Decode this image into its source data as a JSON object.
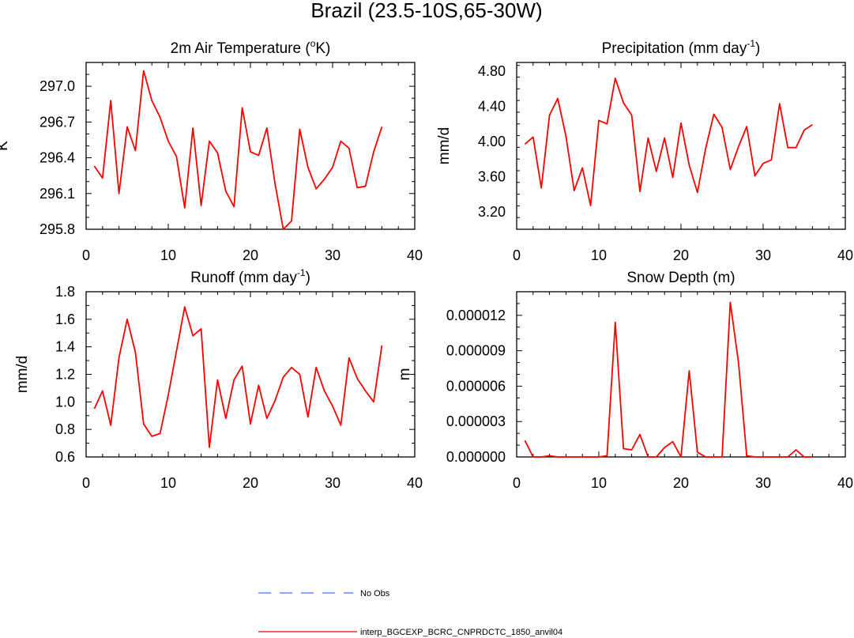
{
  "figure_title": "Brazil (23.5-10S,65-30W)",
  "colors": {
    "model_line": "#ff0000",
    "obs_line": "#4d6bff",
    "axis": "#000000"
  },
  "legend": [
    {
      "label": "No Obs",
      "style": "dashed",
      "color": "#4d6bff"
    },
    {
      "label": "interp_BGCEXP_BCRC_CNPRDCTC_1850_anvil04",
      "style": "solid",
      "color": "#ff0000"
    }
  ],
  "chart_data": [
    {
      "type": "line",
      "title": "2m Air Temperature (",
      "title_sup": "o",
      "title_after": "K)",
      "ylabel": "K",
      "xlim": [
        0,
        40
      ],
      "ylim": [
        295.8,
        297.2
      ],
      "xticks": [
        0,
        10,
        20,
        30,
        40
      ],
      "xtick_labels": [
        "0",
        "10",
        "20",
        "30",
        "40"
      ],
      "yticks": [
        295.8,
        296.1,
        296.4,
        296.7,
        297.0
      ],
      "ytick_labels": [
        "295.8",
        "296.1",
        "296.4",
        "296.7",
        "297.0"
      ],
      "x": [
        1,
        2,
        3,
        4,
        5,
        6,
        7,
        8,
        9,
        10,
        11,
        12,
        13,
        14,
        15,
        16,
        17,
        18,
        19,
        20,
        21,
        22,
        23,
        24,
        25,
        26,
        27,
        28,
        29,
        30,
        31,
        32,
        33,
        34,
        35,
        36
      ],
      "series": [
        {
          "name": "interp_BGCEXP_BCRC_CNPRDCTC_1850_anvil04",
          "values": [
            296.33,
            296.23,
            296.88,
            296.1,
            296.66,
            296.46,
            297.13,
            296.88,
            296.74,
            296.54,
            296.41,
            295.98,
            296.65,
            296.0,
            296.54,
            296.44,
            296.12,
            295.99,
            296.82,
            296.45,
            296.42,
            296.65,
            296.18,
            295.8,
            295.87,
            296.64,
            296.32,
            296.14,
            296.22,
            296.32,
            296.54,
            296.48,
            296.15,
            296.16,
            296.45,
            296.66
          ]
        }
      ]
    },
    {
      "type": "line",
      "title": "Precipitation (mm day",
      "title_sup": "-1",
      "title_after": ")",
      "ylabel": "mm/d",
      "xlim": [
        0,
        40
      ],
      "ylim": [
        3.0,
        4.9
      ],
      "xticks": [
        0,
        10,
        20,
        30,
        40
      ],
      "xtick_labels": [
        "0",
        "10",
        "20",
        "30",
        "40"
      ],
      "yticks": [
        3.2,
        3.6,
        4.0,
        4.4,
        4.8
      ],
      "ytick_labels": [
        "3.20",
        "3.60",
        "4.00",
        "4.40",
        "4.80"
      ],
      "x": [
        1,
        2,
        3,
        4,
        5,
        6,
        7,
        8,
        9,
        10,
        11,
        12,
        13,
        14,
        15,
        16,
        17,
        18,
        19,
        20,
        21,
        22,
        23,
        24,
        25,
        26,
        27,
        28,
        29,
        30,
        31,
        32,
        33,
        34,
        35,
        36
      ],
      "series": [
        {
          "name": "interp_BGCEXP_BCRC_CNPRDCTC_1850_anvil04",
          "values": [
            3.97,
            4.05,
            3.47,
            4.3,
            4.49,
            4.06,
            3.44,
            3.7,
            3.27,
            4.24,
            4.2,
            4.72,
            4.44,
            4.3,
            3.43,
            4.04,
            3.66,
            4.04,
            3.59,
            4.21,
            3.73,
            3.42,
            3.92,
            4.31,
            4.16,
            3.68,
            3.94,
            4.17,
            3.61,
            3.75,
            3.79,
            4.43,
            3.93,
            3.93,
            4.13,
            4.19
          ]
        }
      ]
    },
    {
      "type": "line",
      "title": "Runoff (mm day",
      "title_sup": "-1",
      "title_after": ")",
      "ylabel": "mm/d",
      "xlim": [
        0,
        40
      ],
      "ylim": [
        0.6,
        1.8
      ],
      "xticks": [
        0,
        10,
        20,
        30,
        40
      ],
      "xtick_labels": [
        "0",
        "10",
        "20",
        "30",
        "40"
      ],
      "yticks": [
        0.6,
        0.8,
        1.0,
        1.2,
        1.4,
        1.6,
        1.8
      ],
      "ytick_labels": [
        "0.6",
        "0.8",
        "1.0",
        "1.2",
        "1.4",
        "1.6",
        "1.8"
      ],
      "x": [
        1,
        2,
        3,
        4,
        5,
        6,
        7,
        8,
        9,
        10,
        11,
        12,
        13,
        14,
        15,
        16,
        17,
        18,
        19,
        20,
        21,
        22,
        23,
        24,
        25,
        26,
        27,
        28,
        29,
        30,
        31,
        32,
        33,
        34,
        35,
        36
      ],
      "series": [
        {
          "name": "interp_BGCEXP_BCRC_CNPRDCTC_1850_anvil04",
          "values": [
            0.95,
            1.08,
            0.83,
            1.32,
            1.6,
            1.36,
            0.84,
            0.75,
            0.77,
            1.05,
            1.37,
            1.69,
            1.48,
            1.53,
            0.67,
            1.16,
            0.88,
            1.16,
            1.26,
            0.84,
            1.12,
            0.88,
            1.01,
            1.18,
            1.25,
            1.2,
            0.89,
            1.25,
            1.08,
            0.97,
            0.83,
            1.32,
            1.17,
            1.08,
            1.0,
            1.41
          ]
        }
      ]
    },
    {
      "type": "line",
      "title": "Snow Depth (m)",
      "title_sup": "",
      "title_after": "",
      "ylabel": "m",
      "xlim": [
        0,
        40
      ],
      "ylim": [
        0,
        1.4e-05
      ],
      "xticks": [
        0,
        10,
        20,
        30,
        40
      ],
      "xtick_labels": [
        "0",
        "10",
        "20",
        "30",
        "40"
      ],
      "yticks": [
        0,
        3e-06,
        6e-06,
        9e-06,
        1.2e-05
      ],
      "ytick_labels": [
        "0.000000",
        "0.000003",
        "0.000006",
        "0.000009",
        "0.000012"
      ],
      "x": [
        1,
        2,
        3,
        4,
        5,
        6,
        7,
        8,
        9,
        10,
        11,
        12,
        13,
        14,
        15,
        16,
        17,
        18,
        19,
        20,
        21,
        22,
        23,
        24,
        25,
        26,
        27,
        28,
        29,
        30,
        31,
        32,
        33,
        34,
        35,
        36
      ],
      "series": [
        {
          "name": "interp_BGCEXP_BCRC_CNPRDCTC_1850_anvil04",
          "values": [
            1.4e-06,
            0,
            0,
            1e-07,
            0,
            0,
            0,
            0,
            0,
            0,
            1e-07,
            1.14e-05,
            7e-07,
            6e-07,
            1.9e-06,
            0,
            0,
            8e-07,
            1.3e-06,
            0,
            7.3e-06,
            4e-07,
            0,
            0,
            0,
            1.31e-05,
            8e-06,
            1e-07,
            0,
            0,
            0,
            0,
            0,
            6e-07,
            0,
            0
          ]
        }
      ]
    }
  ]
}
